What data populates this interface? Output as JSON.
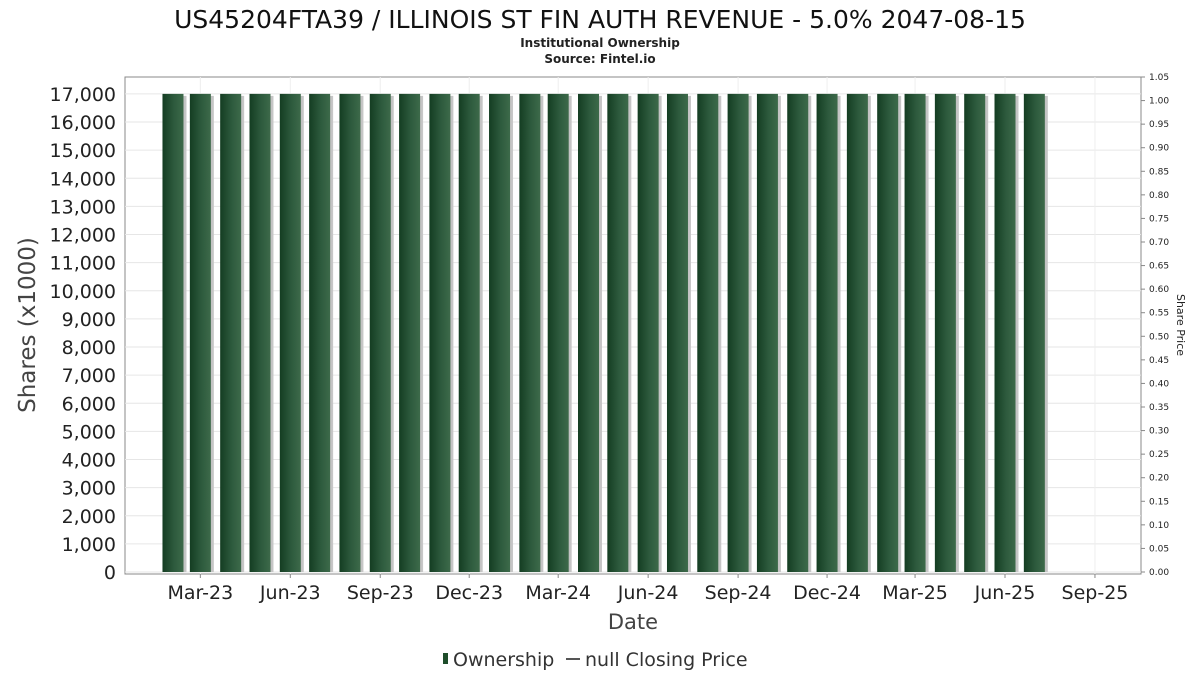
{
  "chart_data": {
    "type": "bar",
    "title": "US45204FTA39 / ILLINOIS ST FIN AUTH REVENUE - 5.0% 2047-08-15",
    "subtitle": "Institutional Ownership",
    "source": "Source: Fintel.io",
    "xlabel": "Date",
    "ylabel": "Shares (x1000)",
    "y2label": "Share Price",
    "ylim": [
      0,
      17600
    ],
    "y2lim": [
      0,
      1.05
    ],
    "yticks": [
      0,
      1000,
      2000,
      3000,
      4000,
      5000,
      6000,
      7000,
      8000,
      9000,
      10000,
      11000,
      12000,
      13000,
      14000,
      15000,
      16000,
      17000
    ],
    "ytick_labels": [
      "0",
      "1,000",
      "2,000",
      "3,000",
      "4,000",
      "5,000",
      "6,000",
      "7,000",
      "8,000",
      "9,000",
      "10,000",
      "11,000",
      "12,000",
      "13,000",
      "14,000",
      "15,000",
      "16,000",
      "17,000"
    ],
    "y2ticks": [
      0,
      0.05,
      0.1,
      0.15,
      0.2,
      0.25,
      0.3,
      0.35,
      0.4,
      0.45,
      0.5,
      0.55,
      0.6,
      0.65,
      0.7,
      0.75,
      0.8,
      0.85,
      0.9,
      0.95,
      1.0,
      1.05
    ],
    "y2tick_labels": [
      "0.00",
      "0.05",
      "0.10",
      "0.15",
      "0.20",
      "0.25",
      "0.30",
      "0.35",
      "0.40",
      "0.45",
      "0.50",
      "0.55",
      "0.60",
      "0.65",
      "0.70",
      "0.75",
      "0.80",
      "0.85",
      "0.90",
      "0.95",
      "1.00",
      "1.05"
    ],
    "x_range": [
      "2022-12-17",
      "2025-10-14"
    ],
    "xticks": [
      "2023-03-01",
      "2023-06-01",
      "2023-09-01",
      "2023-12-01",
      "2024-03-01",
      "2024-06-01",
      "2024-09-01",
      "2024-12-01",
      "2025-03-01",
      "2025-06-01",
      "2025-09-01"
    ],
    "xtick_labels": [
      "Mar-23",
      "Jun-23",
      "Sep-23",
      "Dec-23",
      "Mar-24",
      "Jun-24",
      "Sep-24",
      "Dec-24",
      "Mar-25",
      "Jun-25",
      "Sep-25"
    ],
    "grid": true,
    "legend_position": "bottom",
    "series": [
      {
        "name": "Ownership",
        "color": "#1e4d2b",
        "x": [
          "2023-02-01",
          "2023-03-01",
          "2023-04-01",
          "2023-05-01",
          "2023-06-01",
          "2023-07-01",
          "2023-08-01",
          "2023-09-01",
          "2023-10-01",
          "2023-11-01",
          "2023-12-01",
          "2024-01-01",
          "2024-02-01",
          "2024-03-01",
          "2024-04-01",
          "2024-05-01",
          "2024-06-01",
          "2024-07-01",
          "2024-08-01",
          "2024-09-01",
          "2024-10-01",
          "2024-11-01",
          "2024-12-01",
          "2025-01-01",
          "2025-02-01",
          "2025-03-01",
          "2025-04-01",
          "2025-05-01",
          "2025-06-01",
          "2025-07-01"
        ],
        "values": [
          17000,
          17000,
          17000,
          17000,
          17000,
          17000,
          17000,
          17000,
          17000,
          17000,
          17000,
          17000,
          17000,
          17000,
          17000,
          17000,
          17000,
          17000,
          17000,
          17000,
          17000,
          17000,
          17000,
          17000,
          17000,
          17000,
          17000,
          17000,
          17000,
          17000
        ]
      },
      {
        "name": "null Closing Price",
        "color": "#555555",
        "x": [],
        "values": []
      }
    ]
  }
}
